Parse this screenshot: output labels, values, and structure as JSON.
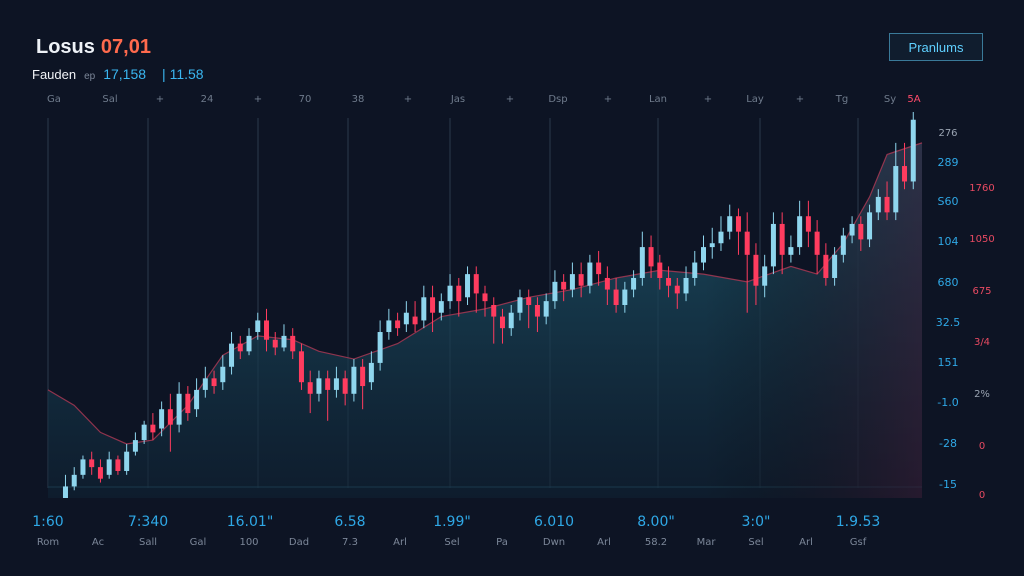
{
  "header": {
    "title": "Losus",
    "price": "07,01",
    "sub_name": "Fauden",
    "sub_unit": "ep",
    "sub_value": "17,158",
    "sub_sep_value": "| 11.58",
    "premium_label": "Pranlums"
  },
  "colors": {
    "background": "#0d1424",
    "up": "#8fd6ee",
    "down": "#ff3c5f",
    "area": "#1a4a5e",
    "accent_blue": "#2fa8e6",
    "accent_red": "#e84a62"
  },
  "chart_data": {
    "type": "candlestick",
    "top_axis_labels": [
      "Ga",
      "Sal",
      "+",
      "24",
      "+",
      "70",
      "38",
      "+",
      "Jas",
      "+",
      "Dsp",
      "+",
      "Lan",
      "+",
      "Lay",
      "+",
      "Tg",
      "Sy",
      "5A"
    ],
    "right_axis_primary": [
      "276",
      "289",
      "S60",
      "104",
      "680",
      "32.5",
      "151",
      "-1.0",
      "-28",
      "-15"
    ],
    "right_axis_secondary": [
      "1760",
      "1050",
      "675",
      "3/4",
      "2%",
      "0",
      "0"
    ],
    "bottom_values": [
      "1:60",
      "7:340",
      "16.01\"",
      "6.58",
      "1.99\"",
      "6.010",
      "8.00\"",
      "3:0\"",
      "1.9.53"
    ],
    "bottom_labels": [
      "Rom",
      "Ac",
      "Sall",
      "Gal",
      "100",
      "Dad",
      "7.3",
      "Arl",
      "Sel",
      "Pa",
      "Dwn",
      "Arl",
      "58.2",
      "Mar",
      "Sel",
      "Arl",
      "Gsf"
    ],
    "y_range": [
      0,
      100
    ],
    "area_profile": [
      [
        0,
        28
      ],
      [
        3,
        24
      ],
      [
        6,
        17
      ],
      [
        9,
        14
      ],
      [
        12,
        15
      ],
      [
        16,
        24
      ],
      [
        20,
        37
      ],
      [
        24,
        42
      ],
      [
        28,
        41
      ],
      [
        31,
        38
      ],
      [
        35,
        36
      ],
      [
        40,
        40
      ],
      [
        45,
        47
      ],
      [
        50,
        49
      ],
      [
        55,
        52
      ],
      [
        60,
        54
      ],
      [
        65,
        57
      ],
      [
        70,
        59
      ],
      [
        75,
        58
      ],
      [
        80,
        56
      ],
      [
        85,
        60
      ],
      [
        88,
        58
      ],
      [
        91,
        66
      ],
      [
        94,
        78
      ],
      [
        96,
        89
      ],
      [
        100,
        92
      ]
    ],
    "candles": [
      [
        2,
        0,
        3,
        0,
        6
      ],
      [
        3,
        3,
        6,
        2,
        8
      ],
      [
        4,
        6,
        10,
        5,
        11
      ],
      [
        5,
        10,
        8,
        6,
        12
      ],
      [
        6,
        8,
        5,
        4,
        10
      ],
      [
        7,
        6,
        10,
        5,
        12
      ],
      [
        8,
        10,
        7,
        6,
        11
      ],
      [
        9,
        7,
        12,
        6,
        14
      ],
      [
        10,
        12,
        15,
        11,
        17
      ],
      [
        11,
        15,
        19,
        14,
        20
      ],
      [
        12,
        19,
        17,
        15,
        22
      ],
      [
        13,
        18,
        23,
        16,
        25
      ],
      [
        14,
        23,
        19,
        12,
        27
      ],
      [
        15,
        19,
        27,
        17,
        30
      ],
      [
        16,
        27,
        22,
        20,
        29
      ],
      [
        17,
        23,
        28,
        21,
        31
      ],
      [
        18,
        28,
        31,
        26,
        34
      ],
      [
        19,
        31,
        29,
        27,
        33
      ],
      [
        20,
        30,
        34,
        28,
        37
      ],
      [
        21,
        34,
        40,
        32,
        43
      ],
      [
        22,
        40,
        38,
        36,
        42
      ],
      [
        23,
        38,
        42,
        37,
        44
      ],
      [
        24,
        43,
        46,
        41,
        48
      ],
      [
        25,
        46,
        41,
        38,
        49
      ],
      [
        26,
        41,
        39,
        37,
        43
      ],
      [
        27,
        39,
        42,
        38,
        45
      ],
      [
        28,
        42,
        38,
        36,
        44
      ],
      [
        29,
        38,
        30,
        28,
        40
      ],
      [
        30,
        30,
        27,
        22,
        33
      ],
      [
        31,
        27,
        31,
        25,
        33
      ],
      [
        32,
        31,
        28,
        20,
        33
      ],
      [
        33,
        28,
        31,
        26,
        34
      ],
      [
        34,
        31,
        27,
        24,
        33
      ],
      [
        35,
        27,
        34,
        25,
        36
      ],
      [
        36,
        34,
        29,
        23,
        36
      ],
      [
        37,
        30,
        35,
        28,
        38
      ],
      [
        38,
        35,
        43,
        33,
        46
      ],
      [
        39,
        43,
        46,
        41,
        49
      ],
      [
        40,
        46,
        44,
        42,
        48
      ],
      [
        41,
        45,
        48,
        43,
        51
      ],
      [
        42,
        47,
        45,
        43,
        51
      ],
      [
        43,
        46,
        52,
        44,
        55
      ],
      [
        44,
        52,
        48,
        43,
        55
      ],
      [
        45,
        48,
        51,
        46,
        53
      ],
      [
        46,
        51,
        55,
        49,
        58
      ],
      [
        47,
        55,
        51,
        47,
        57
      ],
      [
        48,
        52,
        58,
        50,
        60
      ],
      [
        49,
        58,
        53,
        48,
        60
      ],
      [
        50,
        53,
        51,
        47,
        55
      ],
      [
        51,
        50,
        47,
        40,
        52
      ],
      [
        52,
        47,
        44,
        40,
        49
      ],
      [
        53,
        44,
        48,
        42,
        50
      ],
      [
        54,
        48,
        52,
        46,
        54
      ],
      [
        55,
        52,
        50,
        44,
        54
      ],
      [
        56,
        50,
        47,
        43,
        52
      ],
      [
        57,
        47,
        51,
        45,
        53
      ],
      [
        58,
        51,
        56,
        49,
        59
      ],
      [
        59,
        56,
        54,
        51,
        58
      ],
      [
        60,
        54,
        58,
        52,
        61
      ],
      [
        61,
        58,
        55,
        52,
        61
      ],
      [
        62,
        55,
        61,
        53,
        63
      ],
      [
        63,
        61,
        58,
        55,
        64
      ],
      [
        64,
        57,
        54,
        50,
        60
      ],
      [
        65,
        54,
        50,
        48,
        57
      ],
      [
        66,
        50,
        54,
        48,
        56
      ],
      [
        67,
        54,
        57,
        52,
        59
      ],
      [
        68,
        57,
        65,
        55,
        69
      ],
      [
        69,
        65,
        60,
        57,
        68
      ],
      [
        70,
        61,
        57,
        54,
        63
      ],
      [
        71,
        57,
        55,
        52,
        60
      ],
      [
        72,
        55,
        53,
        49,
        57
      ],
      [
        73,
        53,
        57,
        51,
        60
      ],
      [
        74,
        57,
        61,
        55,
        64
      ],
      [
        75,
        61,
        65,
        59,
        68
      ],
      [
        76,
        65,
        66,
        62,
        70
      ],
      [
        77,
        66,
        69,
        64,
        73
      ],
      [
        78,
        69,
        73,
        67,
        76
      ],
      [
        79,
        73,
        69,
        63,
        75
      ],
      [
        80,
        69,
        63,
        48,
        74
      ],
      [
        81,
        63,
        55,
        50,
        66
      ],
      [
        82,
        55,
        60,
        52,
        63
      ],
      [
        83,
        60,
        71,
        58,
        74
      ],
      [
        84,
        71,
        63,
        58,
        74
      ],
      [
        85,
        63,
        65,
        61,
        68
      ],
      [
        86,
        65,
        73,
        63,
        77
      ],
      [
        87,
        73,
        69,
        65,
        77
      ],
      [
        88,
        69,
        63,
        58,
        72
      ],
      [
        89,
        63,
        57,
        55,
        66
      ],
      [
        90,
        57,
        63,
        55,
        65
      ],
      [
        91,
        63,
        68,
        61,
        70
      ],
      [
        92,
        68,
        71,
        66,
        73
      ],
      [
        93,
        71,
        67,
        64,
        73
      ],
      [
        94,
        67,
        74,
        65,
        76
      ],
      [
        95,
        74,
        78,
        72,
        80
      ],
      [
        96,
        78,
        74,
        72,
        82
      ],
      [
        97,
        74,
        86,
        72,
        92
      ],
      [
        98,
        86,
        82,
        80,
        92
      ],
      [
        99,
        82,
        98,
        80,
        100
      ]
    ]
  }
}
